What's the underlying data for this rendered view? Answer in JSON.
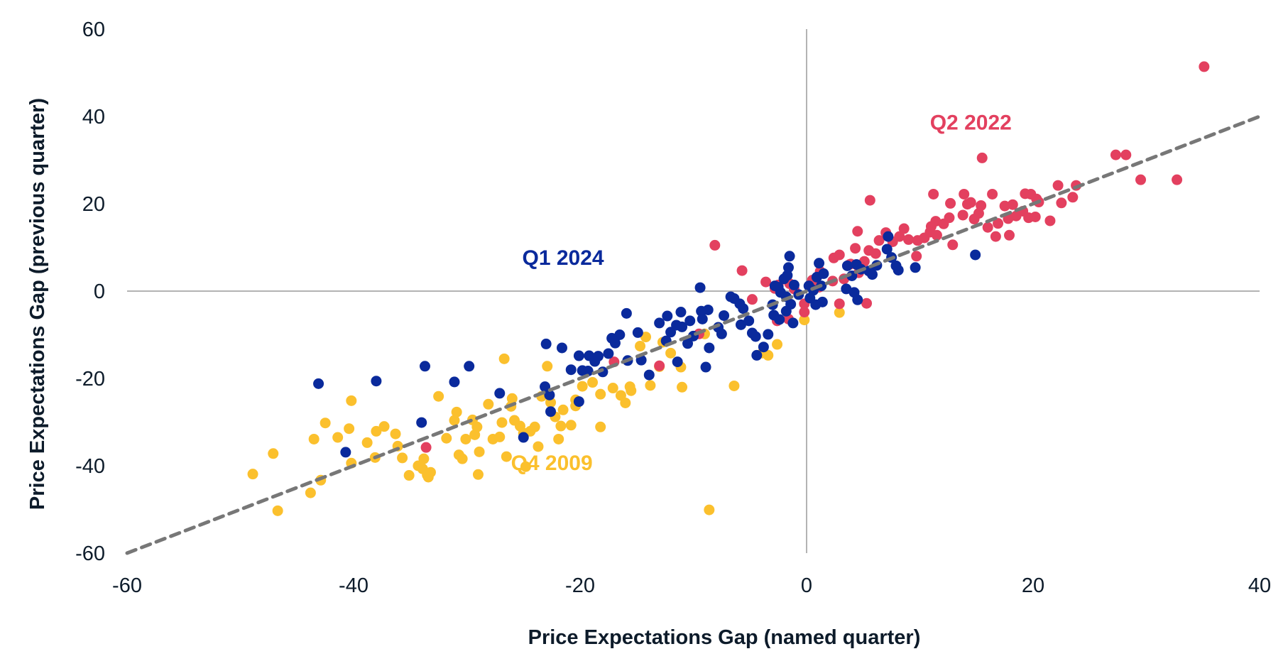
{
  "chart_data": {
    "type": "scatter",
    "title": "",
    "xlabel": "Price Expectations Gap (named quarter)",
    "ylabel": "Price Expectations Gap (previous quarter)",
    "xlim": [
      -60,
      40
    ],
    "ylim": [
      -60,
      60
    ],
    "x_ticks": [
      "-60",
      "-40",
      "-20",
      "0",
      "20",
      "40"
    ],
    "x_tick_values": [
      -60,
      -40,
      -20,
      0,
      20,
      40
    ],
    "y_ticks": [
      "60",
      "40",
      "20",
      "0",
      "-20",
      "-40",
      "-60"
    ],
    "y_tick_values": [
      60,
      40,
      20,
      0,
      -20,
      -40,
      -60
    ],
    "grid": false,
    "zero_lines": true,
    "reference_line": {
      "name": "45-degree line",
      "from": [
        -60,
        -60
      ],
      "to": [
        40,
        40
      ],
      "style": "dashed",
      "color": "#777777"
    },
    "annotations": [
      {
        "text": "Q2 2022",
        "series": "Q2 2022",
        "x": 14.5,
        "y": 37
      },
      {
        "text": "Q1 2024",
        "series": "Q1 2024",
        "x": -21.5,
        "y": 6
      },
      {
        "text": "Q4 2009",
        "series": "Q4 2009",
        "x": -22.5,
        "y": -41
      }
    ],
    "series": [
      {
        "name": "Q2 2022",
        "color": "#e3405f",
        "points": [
          [
            35.1,
            51.4
          ],
          [
            15.5,
            30.5
          ],
          [
            27.3,
            31.2
          ],
          [
            28.2,
            31.2
          ],
          [
            29.5,
            25.5
          ],
          [
            32.7,
            25.5
          ],
          [
            11.2,
            22.2
          ],
          [
            13.9,
            22.2
          ],
          [
            16.4,
            22.2
          ],
          [
            5.6,
            20.8
          ],
          [
            12.7,
            20.1
          ],
          [
            14.2,
            19.9
          ],
          [
            15.4,
            19.6
          ],
          [
            19.8,
            22.2
          ],
          [
            20.3,
            21.1
          ],
          [
            22.2,
            24.2
          ],
          [
            23.8,
            24.2
          ],
          [
            22.5,
            20.2
          ],
          [
            23.5,
            21.5
          ],
          [
            21.5,
            16.1
          ],
          [
            17.5,
            19.5
          ],
          [
            18.2,
            19.8
          ],
          [
            19.1,
            18.3
          ],
          [
            18.5,
            17.2
          ],
          [
            19.6,
            16.8
          ],
          [
            20.2,
            17.0
          ],
          [
            17.8,
            16.6
          ],
          [
            16.9,
            15.5
          ],
          [
            16.0,
            14.6
          ],
          [
            14.8,
            16.5
          ],
          [
            13.8,
            17.4
          ],
          [
            12.6,
            16.8
          ],
          [
            11.4,
            16.0
          ],
          [
            11.0,
            14.8
          ],
          [
            12.1,
            15.4
          ],
          [
            10.9,
            13.5
          ],
          [
            11.5,
            12.8
          ],
          [
            10.4,
            12.2
          ],
          [
            12.9,
            10.6
          ],
          [
            9.8,
            11.6
          ],
          [
            9.0,
            11.8
          ],
          [
            8.2,
            12.5
          ],
          [
            7.6,
            11.3
          ],
          [
            8.6,
            14.3
          ],
          [
            7.0,
            13.4
          ],
          [
            6.4,
            11.6
          ],
          [
            4.5,
            13.7
          ],
          [
            4.3,
            9.8
          ],
          [
            5.5,
            9.3
          ],
          [
            6.1,
            8.6
          ],
          [
            5.1,
            6.8
          ],
          [
            3.9,
            6.2
          ],
          [
            2.4,
            7.6
          ],
          [
            2.9,
            8.3
          ],
          [
            1.2,
            4.5
          ],
          [
            0.5,
            2.5
          ],
          [
            2.3,
            2.3
          ],
          [
            3.3,
            2.8
          ],
          [
            1.1,
            0.9
          ],
          [
            4.6,
            4.2
          ],
          [
            3.8,
            6.1
          ],
          [
            9.7,
            8.0
          ],
          [
            16.7,
            12.5
          ],
          [
            17.9,
            12.8
          ],
          [
            14.5,
            20.3
          ],
          [
            15.2,
            17.8
          ],
          [
            19.3,
            22.3
          ],
          [
            20.5,
            20.4
          ],
          [
            -8.1,
            10.5
          ],
          [
            -5.7,
            4.7
          ],
          [
            -3.6,
            2.1
          ],
          [
            -2.5,
            1.4
          ],
          [
            -2.8,
            0.6
          ],
          [
            -4.8,
            -1.9
          ],
          [
            -1.1,
            0.5
          ],
          [
            -1.5,
            1.7
          ],
          [
            -0.2,
            -4.8
          ],
          [
            -2.6,
            -6.8
          ],
          [
            -1.6,
            -6.4
          ],
          [
            2.9,
            -2.9
          ],
          [
            5.3,
            -2.8
          ],
          [
            -9.5,
            -9.8
          ],
          [
            -17.0,
            -16.2
          ],
          [
            -13.0,
            -17.1
          ],
          [
            -33.6,
            -35.8
          ],
          [
            -0.2,
            -2.9
          ]
        ]
      },
      {
        "name": "Q1 2024",
        "color": "#0a2a9c",
        "points": [
          [
            -43.1,
            -21.2
          ],
          [
            -38.0,
            -20.6
          ],
          [
            -33.7,
            -17.2
          ],
          [
            -31.1,
            -20.8
          ],
          [
            -29.8,
            -17.2
          ],
          [
            -34.0,
            -30.1
          ],
          [
            -40.7,
            -36.9
          ],
          [
            -27.1,
            -23.4
          ],
          [
            -23.1,
            -21.9
          ],
          [
            -22.6,
            -27.6
          ],
          [
            -22.7,
            -23.8
          ],
          [
            -23.0,
            -12.1
          ],
          [
            -21.6,
            -13.0
          ],
          [
            -19.8,
            -18.2
          ],
          [
            -19.2,
            -14.8
          ],
          [
            -20.1,
            -14.8
          ],
          [
            -18.7,
            -16.1
          ],
          [
            -18.4,
            -14.9
          ],
          [
            -20.8,
            -18.0
          ],
          [
            -19.3,
            -18.3
          ],
          [
            -18.0,
            -18.5
          ],
          [
            -17.5,
            -14.3
          ],
          [
            -20.1,
            -25.3
          ],
          [
            -16.9,
            -11.9
          ],
          [
            -16.5,
            -10.0
          ],
          [
            -17.2,
            -10.8
          ],
          [
            -15.9,
            -5.1
          ],
          [
            -15.8,
            -15.9
          ],
          [
            -14.9,
            -9.5
          ],
          [
            -14.6,
            -15.8
          ],
          [
            -13.9,
            -19.2
          ],
          [
            -13.0,
            -7.3
          ],
          [
            -12.3,
            -5.7
          ],
          [
            -12.0,
            -9.4
          ],
          [
            -12.4,
            -11.4
          ],
          [
            -11.5,
            -7.8
          ],
          [
            -11.0,
            -8.2
          ],
          [
            -11.1,
            -4.8
          ],
          [
            -10.3,
            -6.8
          ],
          [
            -11.4,
            -16.2
          ],
          [
            -10.5,
            -12.0
          ],
          [
            -10.0,
            -10.3
          ],
          [
            -9.2,
            -6.4
          ],
          [
            -9.3,
            -4.6
          ],
          [
            -9.4,
            0.8
          ],
          [
            -8.7,
            -4.3
          ],
          [
            -8.9,
            -17.4
          ],
          [
            -8.6,
            -13.0
          ],
          [
            -7.8,
            -8.3
          ],
          [
            -7.5,
            -9.8
          ],
          [
            -7.3,
            -5.6
          ],
          [
            -6.7,
            -1.3
          ],
          [
            -6.4,
            -1.7
          ],
          [
            -5.9,
            -2.9
          ],
          [
            -5.6,
            -4.0
          ],
          [
            -5.8,
            -7.7
          ],
          [
            -5.1,
            -6.8
          ],
          [
            -4.8,
            -9.6
          ],
          [
            -4.5,
            -10.4
          ],
          [
            -4.4,
            -14.7
          ],
          [
            -3.4,
            -9.9
          ],
          [
            -3.8,
            -12.8
          ],
          [
            -2.8,
            1.2
          ],
          [
            -3.0,
            -3.1
          ],
          [
            -2.9,
            -5.5
          ],
          [
            -2.5,
            0.9
          ],
          [
            -2.0,
            2.8
          ],
          [
            -1.7,
            3.6
          ],
          [
            -1.6,
            5.4
          ],
          [
            -1.5,
            8.0
          ],
          [
            -1.1,
            1.4
          ],
          [
            -1.8,
            -1.3
          ],
          [
            -1.4,
            -3.0
          ],
          [
            -1.8,
            -4.6
          ],
          [
            -1.2,
            -7.3
          ],
          [
            -0.7,
            -0.8
          ],
          [
            -2.3,
            -0.3
          ],
          [
            -2.4,
            -6.5
          ],
          [
            1.1,
            6.4
          ],
          [
            0.9,
            3.2
          ],
          [
            1.5,
            4.0
          ],
          [
            1.3,
            1.2
          ],
          [
            0.6,
            0.2
          ],
          [
            0.2,
            1.2
          ],
          [
            1.4,
            -2.5
          ],
          [
            0.8,
            -3.1
          ],
          [
            0.3,
            -1.6
          ],
          [
            3.5,
            0.5
          ],
          [
            4.2,
            -0.3
          ],
          [
            4.0,
            3.5
          ],
          [
            3.6,
            5.8
          ],
          [
            4.4,
            6.1
          ],
          [
            4.8,
            5.0
          ],
          [
            5.5,
            4.6
          ],
          [
            5.8,
            3.8
          ],
          [
            6.2,
            5.9
          ],
          [
            7.1,
            9.6
          ],
          [
            7.5,
            7.7
          ],
          [
            8.1,
            4.8
          ],
          [
            7.9,
            5.8
          ],
          [
            9.6,
            5.4
          ],
          [
            14.9,
            8.3
          ],
          [
            7.2,
            12.5
          ],
          [
            4.5,
            -2.0
          ],
          [
            -25.0,
            -33.5
          ]
        ]
      },
      {
        "name": "Q4 2009",
        "color": "#fbc02d",
        "points": [
          [
            -48.9,
            -41.9
          ],
          [
            -47.1,
            -37.2
          ],
          [
            -46.7,
            -50.3
          ],
          [
            -43.8,
            -46.2
          ],
          [
            -43.5,
            -33.9
          ],
          [
            -42.9,
            -43.3
          ],
          [
            -42.5,
            -30.2
          ],
          [
            -41.4,
            -33.5
          ],
          [
            -40.4,
            -31.5
          ],
          [
            -40.2,
            -25.1
          ],
          [
            -40.2,
            -39.4
          ],
          [
            -38.8,
            -34.7
          ],
          [
            -38.0,
            -32.1
          ],
          [
            -38.1,
            -38.1
          ],
          [
            -37.3,
            -31.0
          ],
          [
            -36.3,
            -32.7
          ],
          [
            -36.1,
            -35.5
          ],
          [
            -35.7,
            -38.2
          ],
          [
            -35.1,
            -42.2
          ],
          [
            -34.3,
            -40.0
          ],
          [
            -33.8,
            -38.4
          ],
          [
            -33.9,
            -40.7
          ],
          [
            -33.4,
            -42.6
          ],
          [
            -33.2,
            -41.5
          ],
          [
            -33.5,
            -42.1
          ],
          [
            -32.5,
            -24.1
          ],
          [
            -31.8,
            -33.7
          ],
          [
            -31.1,
            -29.6
          ],
          [
            -30.9,
            -27.7
          ],
          [
            -30.7,
            -37.5
          ],
          [
            -30.4,
            -38.4
          ],
          [
            -30.1,
            -33.9
          ],
          [
            -29.5,
            -29.5
          ],
          [
            -29.3,
            -32.9
          ],
          [
            -29.1,
            -31.1
          ],
          [
            -28.9,
            -36.8
          ],
          [
            -29.0,
            -42.0
          ],
          [
            -28.1,
            -25.9
          ],
          [
            -27.7,
            -33.9
          ],
          [
            -27.1,
            -33.4
          ],
          [
            -26.9,
            -30.1
          ],
          [
            -26.7,
            -15.5
          ],
          [
            -26.5,
            -37.9
          ],
          [
            -26.1,
            -26.4
          ],
          [
            -26.0,
            -24.6
          ],
          [
            -25.8,
            -29.6
          ],
          [
            -25.3,
            -30.9
          ],
          [
            -25.0,
            -32.5
          ],
          [
            -24.8,
            -40.2
          ],
          [
            -24.4,
            -32.1
          ],
          [
            -24.0,
            -31.1
          ],
          [
            -23.7,
            -35.6
          ],
          [
            -23.4,
            -24.1
          ],
          [
            -22.9,
            -17.2
          ],
          [
            -22.6,
            -25.5
          ],
          [
            -22.2,
            -28.8
          ],
          [
            -21.9,
            -33.9
          ],
          [
            -21.7,
            -30.9
          ],
          [
            -21.5,
            -27.2
          ],
          [
            -20.8,
            -30.7
          ],
          [
            -20.4,
            -24.9
          ],
          [
            -20.4,
            -26.3
          ],
          [
            -19.8,
            -21.8
          ],
          [
            -18.9,
            -20.9
          ],
          [
            -18.2,
            -31.1
          ],
          [
            -18.2,
            -23.6
          ],
          [
            -17.1,
            -22.2
          ],
          [
            -16.4,
            -23.9
          ],
          [
            -16.0,
            -25.6
          ],
          [
            -15.6,
            -21.9
          ],
          [
            -15.5,
            -22.8
          ],
          [
            -14.7,
            -12.6
          ],
          [
            -14.2,
            -10.5
          ],
          [
            -13.8,
            -21.6
          ],
          [
            -13.0,
            -17.3
          ],
          [
            -12.7,
            -11.7
          ],
          [
            -12.0,
            -14.2
          ],
          [
            -11.1,
            -17.4
          ],
          [
            -11.0,
            -22.0
          ],
          [
            -9.0,
            -9.8
          ],
          [
            -6.4,
            -21.7
          ],
          [
            -2.6,
            -12.2
          ],
          [
            -3.9,
            -14.2
          ],
          [
            -3.4,
            -14.7
          ],
          [
            -8.6,
            -50.1
          ],
          [
            -0.2,
            -6.6
          ],
          [
            2.9,
            -4.9
          ]
        ]
      }
    ]
  }
}
